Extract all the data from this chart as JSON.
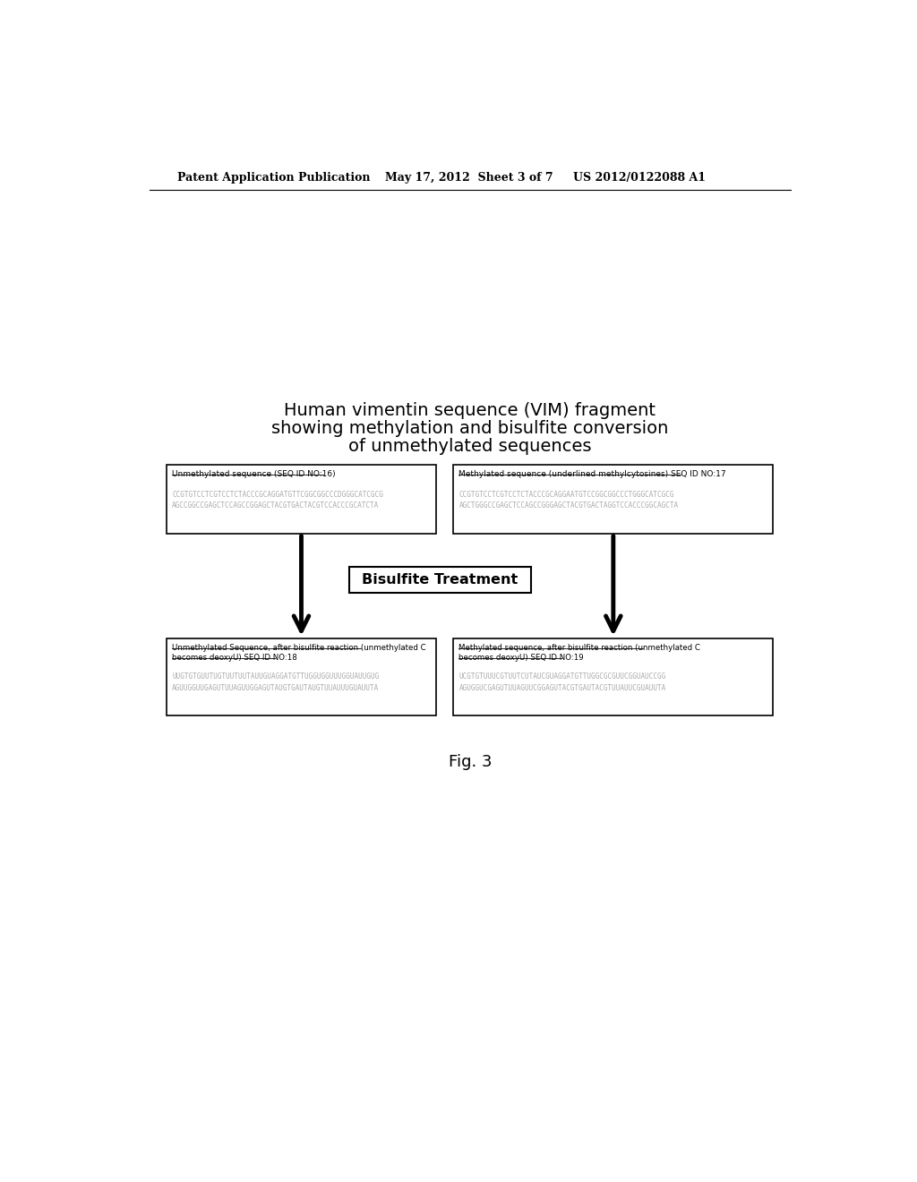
{
  "title_line1": "Human vimentin sequence (VIM) fragment",
  "title_line2": "showing methylation and bisulfite conversion",
  "title_line3": "of unmethylated sequences",
  "header_left": "Patent Application Publication",
  "header_mid": "May 17, 2012  Sheet 3 of 7",
  "header_right": "US 2012/0122088 A1",
  "fig_label": "Fig. 3",
  "bisulfite_box_text": "Bisulfite Treatment",
  "box1_title": "Unmethylated sequence (SEQ ID NO:16)",
  "box1_seq1": "CCGTGTCCTCGTCCTCTACCCGCAGGATGTTCGGCGGCCCDGGGCATCGCG",
  "box1_seq2": "AGCCGGCCGAGCTCCAGCCGGAGCTACGTGACTACGTCCACCCGCATCTA",
  "box2_title": "Methylated sequence (underlined methylcytosines) SEQ ID NO:17",
  "box2_seq1": "CCGTGTCCTCGTCCTCTACCCGCAGGAATGTCCGGCGGCCCTGGGCATCGCG",
  "box2_seq2": "AGCTGGGCCGAGCTCCAGCCGGGAGCTACGTGACTAGGTCCACCCGGCAGCTA",
  "box3_title_line1": "Unmethylated Sequence, after bisulfite reaction (unmethylated C",
  "box3_title_line2": "becomes deoxyU) SEQ ID NO:18",
  "box3_seq1": "UUGTGTGUUTUGTUUTUUTAUUGUAGGATGTTUGGUGGUUUGGUAUUGUG",
  "box3_seq2": "AGUUGGUUGAGUTUUAGUUGGAGUTAUGTGAUTAUGTUUAUUUGUAUUTA",
  "box4_title_line1": "Methylated sequence, after bisulfite reaction (unmethylated C",
  "box4_title_line2": "becomes deoxyU) SEQ ID NO:19",
  "box4_seq1": "UCGTGTUUUCGTUUTCUTAUCGUAGGATGTTUGGCGCGUUCGGUAUCCGG",
  "box4_seq2": "AGUGGUCGAGUTUUAGUUCGGAGUTACGTGAUTACGTUUAUUCGUAUUTA",
  "bg_color": "#ffffff",
  "box_color": "#ffffff",
  "box_border": "#000000",
  "arrow_color": "#000000",
  "text_color": "#000000",
  "seq_color": "#aaaaaa"
}
